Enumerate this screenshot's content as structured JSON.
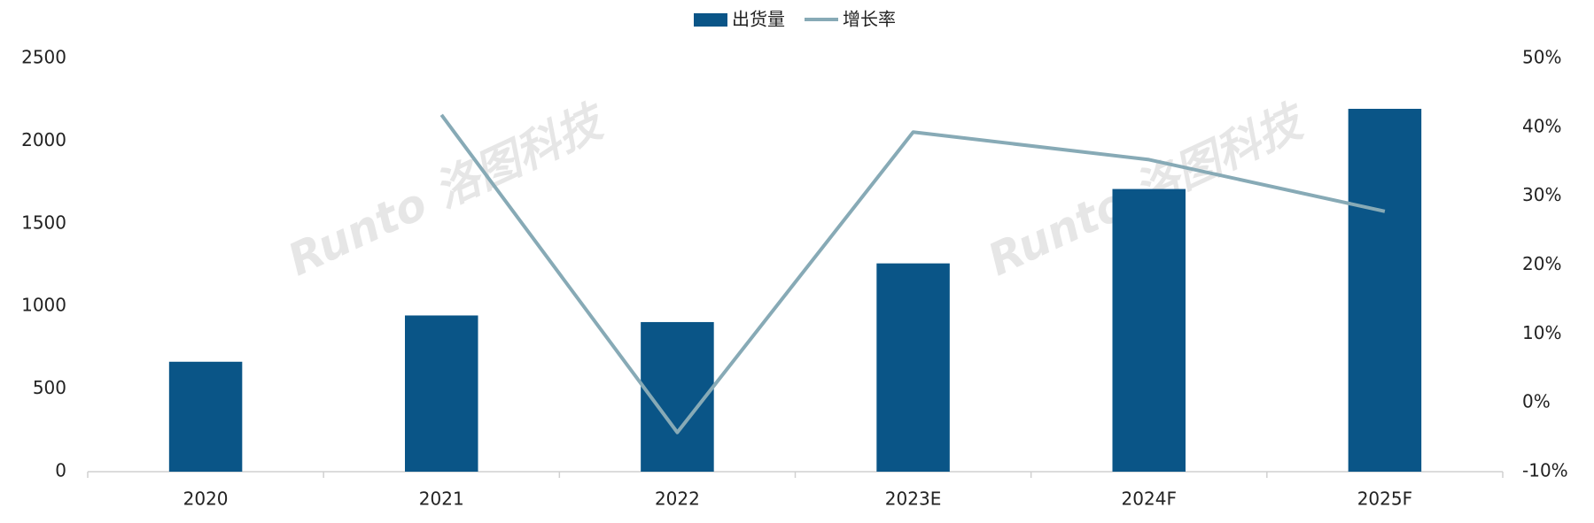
{
  "chart_data": {
    "type": "bar-line",
    "watermark": "Runto 洛图科技",
    "categories": [
      "2020",
      "2021",
      "2022",
      "2023E",
      "2024F",
      "2025F"
    ],
    "series": [
      {
        "name": "出货量",
        "type": "bar",
        "color": "#0a5587",
        "values": [
          665,
          945,
          905,
          1260,
          1710,
          2195
        ]
      },
      {
        "name": "增长率",
        "type": "line",
        "axis": "y2",
        "color": "#87aab6",
        "values": [
          null,
          41.8,
          -4.3,
          39.3,
          35.3,
          27.8
        ]
      }
    ],
    "ylim": [
      0,
      2500
    ],
    "yticks": [
      0,
      500,
      1000,
      1500,
      2000,
      2500
    ],
    "y2lim": [
      -10,
      50
    ],
    "y2ticks": [
      {
        "value": -10,
        "label": "-10%"
      },
      {
        "value": 0,
        "label": "0%"
      },
      {
        "value": 10,
        "label": "10%"
      },
      {
        "value": 20,
        "label": "20%"
      },
      {
        "value": 30,
        "label": "30%"
      },
      {
        "value": 40,
        "label": "40%"
      },
      {
        "value": 50,
        "label": "50%"
      }
    ],
    "legend": "top",
    "grid": false
  }
}
